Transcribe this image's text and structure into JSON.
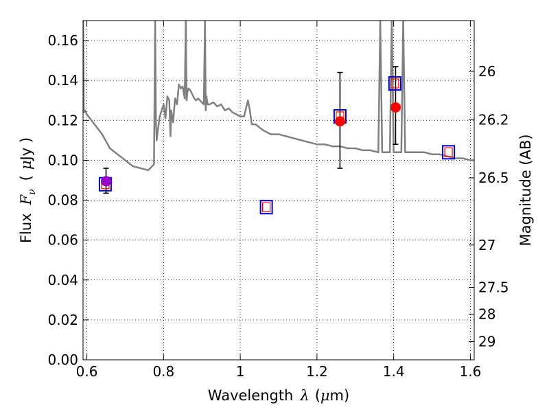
{
  "chart_data": {
    "type": "scatter",
    "title": "",
    "xlabel": {
      "text": "Wavelength",
      "symbol": "λ",
      "unit_open": "(",
      "unit_mu": "μ",
      "unit_rest": "m)"
    },
    "ylabel": {
      "text": "Flux",
      "symbol": "F",
      "subscript": "ν",
      "unit_open": "(",
      "unit_mu": "μ",
      "unit_rest": "Jy )"
    },
    "y2label": "Magnitude (AB)",
    "xlim": [
      0.59,
      1.61
    ],
    "ylim": [
      0.0,
      0.17
    ],
    "grid": true,
    "x_ticks": [
      0.6,
      0.8,
      1.0,
      1.2,
      1.4,
      1.6
    ],
    "x_tick_labels": [
      "0.6",
      "0.8",
      "1",
      "1.2",
      "1.4",
      "1.6"
    ],
    "y_ticks": [
      0.0,
      0.02,
      0.04,
      0.06,
      0.08,
      0.1,
      0.12,
      0.14,
      0.16
    ],
    "y_tick_labels": [
      "0.00",
      "0.02",
      "0.04",
      "0.06",
      "0.08",
      "0.10",
      "0.12",
      "0.14",
      "0.16"
    ],
    "mag_ticks": [
      {
        "mag": 26,
        "label": "26"
      },
      {
        "mag": 26.2,
        "label": "26.2"
      },
      {
        "mag": 26.5,
        "label": "26.5"
      },
      {
        "mag": 27,
        "label": "27"
      },
      {
        "mag": 27.5,
        "label": "27.5"
      },
      {
        "mag": 28,
        "label": "28"
      },
      {
        "mag": 29,
        "label": "29"
      }
    ],
    "colors": {
      "model": "#808080",
      "observed": "#ff0000",
      "purple": "#9900cc",
      "model_box": "#0000cc",
      "model_box_inner": "#ff0000",
      "errorbar": "#000000"
    },
    "model_spectrum": {
      "x": [
        0.59,
        0.592,
        0.595,
        0.6,
        0.62,
        0.64,
        0.66,
        0.68,
        0.7,
        0.72,
        0.74,
        0.76,
        0.775,
        0.778,
        0.78,
        0.782,
        0.785,
        0.79,
        0.8,
        0.805,
        0.81,
        0.815,
        0.818,
        0.82,
        0.825,
        0.83,
        0.835,
        0.84,
        0.845,
        0.85,
        0.855,
        0.858,
        0.86,
        0.862,
        0.865,
        0.87,
        0.875,
        0.88,
        0.885,
        0.89,
        0.895,
        0.9,
        0.905,
        0.908,
        0.91,
        0.912,
        0.915,
        0.92,
        0.93,
        0.94,
        0.95,
        0.96,
        0.97,
        0.98,
        0.99,
        1.0,
        1.01,
        1.02,
        1.025,
        1.03,
        1.04,
        1.06,
        1.08,
        1.1,
        1.12,
        1.14,
        1.16,
        1.18,
        1.2,
        1.22,
        1.24,
        1.26,
        1.28,
        1.3,
        1.32,
        1.34,
        1.36,
        1.365,
        1.37,
        1.38,
        1.39,
        1.395,
        1.4,
        1.405,
        1.41,
        1.415,
        1.42,
        1.425,
        1.43,
        1.44,
        1.46,
        1.48,
        1.5,
        1.52,
        1.54,
        1.56,
        1.58,
        1.6,
        1.61
      ],
      "y": [
        0.17,
        0.124,
        0.125,
        0.123,
        0.118,
        0.113,
        0.106,
        0.103,
        0.1,
        0.097,
        0.096,
        0.095,
        0.098,
        0.17,
        0.12,
        0.11,
        0.115,
        0.122,
        0.128,
        0.121,
        0.132,
        0.13,
        0.112,
        0.125,
        0.119,
        0.131,
        0.128,
        0.138,
        0.136,
        0.137,
        0.131,
        0.17,
        0.13,
        0.134,
        0.136,
        0.135,
        0.133,
        0.131,
        0.13,
        0.131,
        0.13,
        0.129,
        0.128,
        0.17,
        0.125,
        0.132,
        0.128,
        0.128,
        0.129,
        0.127,
        0.128,
        0.125,
        0.126,
        0.124,
        0.123,
        0.122,
        0.122,
        0.13,
        0.125,
        0.118,
        0.118,
        0.115,
        0.113,
        0.113,
        0.112,
        0.111,
        0.11,
        0.109,
        0.108,
        0.108,
        0.107,
        0.107,
        0.106,
        0.106,
        0.105,
        0.105,
        0.104,
        0.17,
        0.104,
        0.104,
        0.104,
        0.17,
        0.104,
        0.104,
        0.104,
        0.104,
        0.104,
        0.17,
        0.104,
        0.104,
        0.104,
        0.104,
        0.103,
        0.103,
        0.102,
        0.101,
        0.101,
        0.1,
        0.1
      ]
    },
    "observed": [
      {
        "x": 0.65,
        "y": 0.0895,
        "err_low": 0.006,
        "err_high": 0.0065,
        "color": "purple"
      },
      {
        "x": 1.26,
        "y": 0.1195,
        "err_low": 0.0235,
        "err_high": 0.0245,
        "color": "observed"
      },
      {
        "x": 1.405,
        "y": 0.1265,
        "err_low": 0.0185,
        "err_high": 0.0205,
        "color": "observed"
      }
    ],
    "model_photometry": [
      {
        "x": 0.648,
        "y": 0.088
      },
      {
        "x": 1.068,
        "y": 0.0765
      },
      {
        "x": 1.26,
        "y": 0.122
      },
      {
        "x": 1.403,
        "y": 0.1385
      },
      {
        "x": 1.543,
        "y": 0.104
      }
    ]
  }
}
